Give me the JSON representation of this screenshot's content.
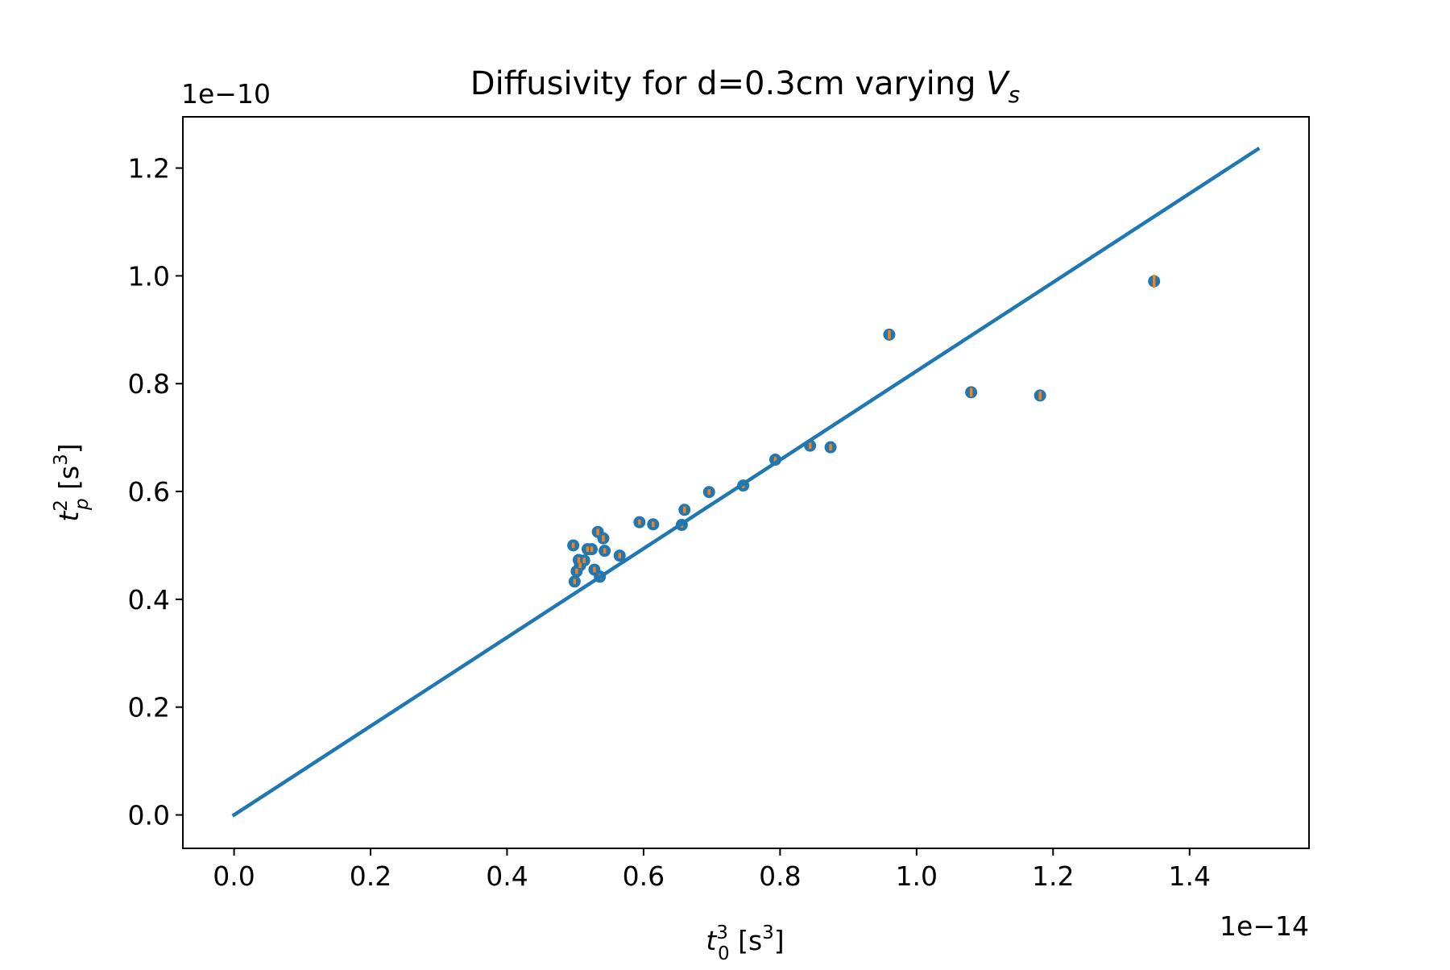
{
  "chart_data": {
    "type": "scatter",
    "title_prefix": "Diffusivity for d=0.3cm varying ",
    "title_var": "V",
    "title_sub": "s",
    "xlabel": {
      "var": "t",
      "sub": "0",
      "sup": "3",
      "unit": " [s",
      "unit_sup": "3",
      "unit_end": "]"
    },
    "ylabel": {
      "var": "t",
      "sub": "p",
      "sup": "2",
      "unit": " [s",
      "unit_sup": "3",
      "unit_end": "]"
    },
    "x_offset_text": "1e−14",
    "y_offset_text": "1e−10",
    "x_scale": 1e-14,
    "y_scale": 1e-10,
    "xlim": [
      -0.075,
      1.575
    ],
    "ylim": [
      -0.062,
      1.295
    ],
    "x_ticks": [
      0.0,
      0.2,
      0.4,
      0.6,
      0.8,
      1.0,
      1.2,
      1.4
    ],
    "x_tick_labels": [
      "0.0",
      "0.2",
      "0.4",
      "0.6",
      "0.8",
      "1.0",
      "1.2",
      "1.4"
    ],
    "y_ticks": [
      0.0,
      0.2,
      0.4,
      0.6,
      0.8,
      1.0,
      1.2
    ],
    "y_tick_labels": [
      "0.0",
      "0.2",
      "0.4",
      "0.6",
      "0.8",
      "1.0",
      "1.2"
    ],
    "grid": false,
    "colors": {
      "points": "#1f77b4",
      "errorbars": "#ff7f0e",
      "fit": "#1f77b4"
    },
    "series": [
      {
        "kind": "scatter_with_errorbars",
        "points": [
          {
            "x": 0.497,
            "y": 0.5,
            "yerr": 0.005
          },
          {
            "x": 0.499,
            "y": 0.433,
            "yerr": 0.005
          },
          {
            "x": 0.502,
            "y": 0.452,
            "yerr": 0.005
          },
          {
            "x": 0.505,
            "y": 0.473,
            "yerr": 0.005
          },
          {
            "x": 0.507,
            "y": 0.463,
            "yerr": 0.005
          },
          {
            "x": 0.513,
            "y": 0.472,
            "yerr": 0.005
          },
          {
            "x": 0.518,
            "y": 0.493,
            "yerr": 0.005
          },
          {
            "x": 0.524,
            "y": 0.493,
            "yerr": 0.005
          },
          {
            "x": 0.528,
            "y": 0.455,
            "yerr": 0.005
          },
          {
            "x": 0.533,
            "y": 0.525,
            "yerr": 0.006
          },
          {
            "x": 0.536,
            "y": 0.442,
            "yerr": 0.005
          },
          {
            "x": 0.541,
            "y": 0.513,
            "yerr": 0.006
          },
          {
            "x": 0.543,
            "y": 0.49,
            "yerr": 0.005
          },
          {
            "x": 0.565,
            "y": 0.481,
            "yerr": 0.005
          },
          {
            "x": 0.594,
            "y": 0.543,
            "yerr": 0.005
          },
          {
            "x": 0.614,
            "y": 0.539,
            "yerr": 0.005
          },
          {
            "x": 0.656,
            "y": 0.538,
            "yerr": 0.005
          },
          {
            "x": 0.66,
            "y": 0.566,
            "yerr": 0.006
          },
          {
            "x": 0.696,
            "y": 0.599,
            "yerr": 0.005
          },
          {
            "x": 0.746,
            "y": 0.611,
            "yerr": 0.005
          },
          {
            "x": 0.793,
            "y": 0.659,
            "yerr": 0.005
          },
          {
            "x": 0.844,
            "y": 0.685,
            "yerr": 0.006
          },
          {
            "x": 0.874,
            "y": 0.682,
            "yerr": 0.006
          },
          {
            "x": 0.96,
            "y": 0.891,
            "yerr": 0.008
          },
          {
            "x": 1.08,
            "y": 0.784,
            "yerr": 0.008
          },
          {
            "x": 1.181,
            "y": 0.778,
            "yerr": 0.008
          },
          {
            "x": 1.348,
            "y": 0.99,
            "yerr": 0.012
          }
        ]
      },
      {
        "kind": "fit_line",
        "x": [
          0.0,
          1.5
        ],
        "y": [
          0.0,
          1.235
        ]
      }
    ]
  }
}
